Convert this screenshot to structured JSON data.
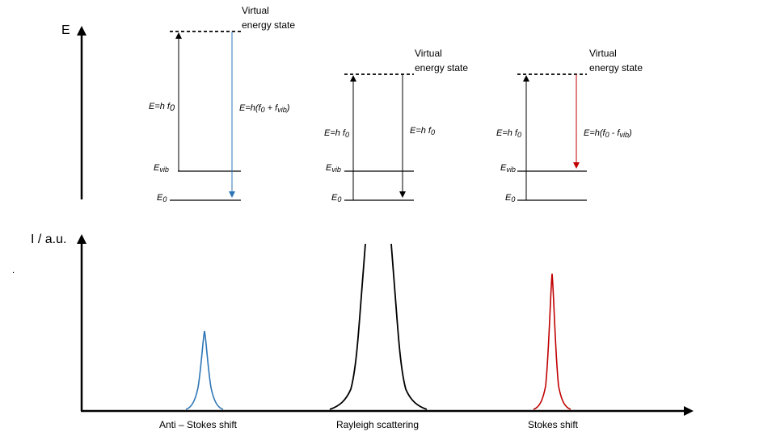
{
  "colors": {
    "axis": "#000000",
    "anti_stokes": "#2E75B6",
    "rayleigh": "#000000",
    "stokes": "#C00000",
    "background": "#ffffff"
  },
  "energy_axis": {
    "label": "E"
  },
  "intensity_axis": {
    "label": "I / a.u."
  },
  "stray_mark": ".",
  "panels": [
    {
      "virtual_label_line1": "Virtual",
      "virtual_label_line2": "energy state",
      "up_label": "E=h f",
      "up_sub": "0",
      "down_label": "E=h(f",
      "down_sub1": "0",
      "down_mid": " + f",
      "down_sub2": "vib",
      "down_end": ")",
      "evib_label": "E",
      "evib_sub": "vib",
      "e0_label": "E",
      "e0_sub": "0"
    },
    {
      "virtual_label_line1": "Virtual",
      "virtual_label_line2": "energy state",
      "up_label": "E=h f",
      "up_sub": "0",
      "down_label": "E=h f",
      "down_sub": "0",
      "evib_label": "E",
      "evib_sub": "vib",
      "e0_label": "E",
      "e0_sub": "0"
    },
    {
      "virtual_label_line1": "Virtual",
      "virtual_label_line2": "energy state",
      "up_label": "E=h f",
      "up_sub": "0",
      "down_label": "E=h(f",
      "down_sub1": "0",
      "down_mid": " - f",
      "down_sub2": "vib",
      "down_end": ")",
      "evib_label": "E",
      "evib_sub": "vib",
      "e0_label": "E",
      "e0_sub": "0"
    }
  ],
  "spectrum": {
    "peaks": [
      {
        "label": "Anti – Stokes shift",
        "color_key": "anti_stokes"
      },
      {
        "label": "Rayleigh scattering",
        "color_key": "rayleigh"
      },
      {
        "label": "Stokes shift",
        "color_key": "stokes"
      }
    ]
  }
}
